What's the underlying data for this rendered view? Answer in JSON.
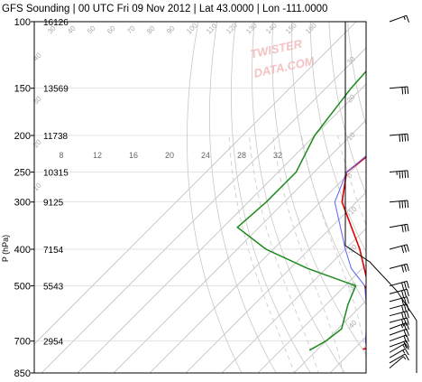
{
  "title": "GFS Sounding | 00 UTC Fri 09 Nov 2012 | Lat 43.0000 | Lon -111.0000",
  "watermark": [
    "TWISTER",
    "DATA.COM"
  ],
  "colors": {
    "temperature": "#e00000",
    "dewpoint": "#1a8a1a",
    "parcel": "#6a6af5",
    "virtual_temperature": "#b00000",
    "isotherm": "#c0c0c0",
    "dry_adiabat": "#c8c8c8",
    "moist_adiabat": "#c8c8c8",
    "wind_barb": "#000000"
  },
  "chart_data": {
    "type": "line",
    "title": "GFS Sounding | 00 UTC Fri 09 Nov 2012 | Lat 43.0000 | Lon -111.0000",
    "ylabel": "P (hPa)",
    "y_scale": "log",
    "y_reversed": true,
    "ylim": [
      850,
      100
    ],
    "pressure_ticks": [
      {
        "p": 100,
        "label": "100",
        "height": "16126"
      },
      {
        "p": 150,
        "label": "150",
        "height": "13569"
      },
      {
        "p": 200,
        "label": "200",
        "height": "11738"
      },
      {
        "p": 250,
        "label": "250",
        "height": "10315"
      },
      {
        "p": 300,
        "label": "300",
        "height": "9125"
      },
      {
        "p": 400,
        "label": "400",
        "height": "7154"
      },
      {
        "p": 500,
        "label": "500",
        "height": "5543"
      },
      {
        "p": 700,
        "label": "700",
        "height": "2954"
      },
      {
        "p": 850,
        "label": "850",
        "height": ""
      }
    ],
    "isotherm_labels": [
      "8",
      "12",
      "16",
      "20",
      "24",
      "28",
      "32"
    ],
    "isotherms_c": [
      -100,
      -90,
      -80,
      -70,
      -60,
      -50,
      -40,
      -30,
      -20,
      -10,
      0,
      10,
      20,
      30,
      40
    ],
    "theta_labels_top": [
      "30",
      "40",
      "50",
      "60",
      "70",
      "80",
      "90",
      "100",
      "110",
      "120",
      "130",
      "140",
      "150",
      "160"
    ],
    "theta_labels_right": [
      "30",
      "20",
      "10",
      "0",
      "-10",
      "-20",
      "-30",
      "-40"
    ],
    "theta_labels_left": [
      "40",
      "30",
      "20",
      "10"
    ],
    "series": [
      {
        "name": "Temperature",
        "points": [
          [
            100,
            -55.0
          ],
          [
            150,
            -56.0
          ],
          [
            200,
            -58.0
          ],
          [
            250,
            -61.0
          ],
          [
            300,
            -54.0
          ],
          [
            400,
            -36.0
          ],
          [
            500,
            -23.5
          ],
          [
            600,
            -13.0
          ],
          [
            700,
            -5.0
          ],
          [
            720,
            -3.0
          ],
          [
            735,
            -7.5
          ]
        ]
      },
      {
        "name": "Dew point",
        "points": [
          [
            100,
            -85.0
          ],
          [
            150,
            -83.0
          ],
          [
            200,
            -80.0
          ],
          [
            250,
            -75.0
          ],
          [
            300,
            -75.0
          ],
          [
            350,
            -76.0
          ],
          [
            400,
            -62.0
          ],
          [
            450,
            -45.0
          ],
          [
            500,
            -27.0
          ],
          [
            560,
            -24.0
          ],
          [
            650,
            -19.0
          ],
          [
            700,
            -20.0
          ],
          [
            740,
            -22.0
          ]
        ]
      },
      {
        "name": "Parcel",
        "points": [
          [
            100,
            -56.0
          ],
          [
            150,
            -57.0
          ],
          [
            200,
            -59.0
          ],
          [
            250,
            -61.0
          ],
          [
            300,
            -56.0
          ],
          [
            400,
            -40.0
          ],
          [
            450,
            -33.0
          ],
          [
            500,
            -24.5
          ],
          [
            600,
            -15.5
          ],
          [
            700,
            -9.0
          ],
          [
            740,
            -6.0
          ]
        ]
      },
      {
        "name": "Virtual temperature",
        "points": [
          [
            500,
            -24.5
          ],
          [
            600,
            -14.0
          ],
          [
            700,
            -6.0
          ],
          [
            725,
            -3.5
          ]
        ]
      }
    ],
    "wind_barbs": [
      {
        "p": 100,
        "speed_kt": 15,
        "dir_deg": 250
      },
      {
        "p": 150,
        "speed_kt": 30,
        "dir_deg": 265
      },
      {
        "p": 200,
        "speed_kt": 40,
        "dir_deg": 265
      },
      {
        "p": 250,
        "speed_kt": 45,
        "dir_deg": 265
      },
      {
        "p": 300,
        "speed_kt": 40,
        "dir_deg": 265
      },
      {
        "p": 350,
        "speed_kt": 30,
        "dir_deg": 260
      },
      {
        "p": 400,
        "speed_kt": 30,
        "dir_deg": 255
      },
      {
        "p": 450,
        "speed_kt": 30,
        "dir_deg": 255
      },
      {
        "p": 500,
        "speed_kt": 30,
        "dir_deg": 255
      },
      {
        "p": 525,
        "speed_kt": 30,
        "dir_deg": 255
      },
      {
        "p": 550,
        "speed_kt": 30,
        "dir_deg": 255
      },
      {
        "p": 575,
        "speed_kt": 30,
        "dir_deg": 255
      },
      {
        "p": 600,
        "speed_kt": 30,
        "dir_deg": 255
      },
      {
        "p": 625,
        "speed_kt": 30,
        "dir_deg": 255
      },
      {
        "p": 650,
        "speed_kt": 25,
        "dir_deg": 250
      },
      {
        "p": 675,
        "speed_kt": 20,
        "dir_deg": 250
      },
      {
        "p": 700,
        "speed_kt": 20,
        "dir_deg": 250
      },
      {
        "p": 725,
        "speed_kt": 20,
        "dir_deg": 250
      },
      {
        "p": 750,
        "speed_kt": 15,
        "dir_deg": 240
      },
      {
        "p": 775,
        "speed_kt": 15,
        "dir_deg": 240
      },
      {
        "p": 800,
        "speed_kt": 10,
        "dir_deg": 240
      },
      {
        "p": 825,
        "speed_kt": 5,
        "dir_deg": 230
      }
    ],
    "hodograph_outline": true,
    "grid": true,
    "legend": "none"
  }
}
